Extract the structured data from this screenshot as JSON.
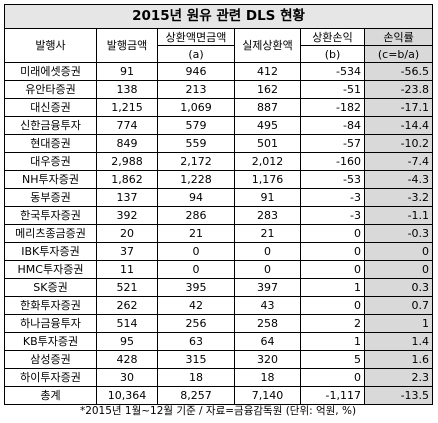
{
  "title": "2015년 원유 관련 DLS 현황",
  "headers": {
    "company": "발행사",
    "issue_amount": "발행금액",
    "redemption_face_line1": "상환액면금액",
    "redemption_face_line2": "(a)",
    "actual_redemption": "실제상환액",
    "pnl_line1": "상환손익",
    "pnl_line2": "(b)",
    "loss_rate_line1": "손익률",
    "loss_rate_line2": "(c=b/a)"
  },
  "rows": [
    {
      "company": "미래에셋증권",
      "issue": "91",
      "face": "946",
      "actual": "412",
      "pnl": "-534",
      "rate": "-56.5"
    },
    {
      "company": "유안타증권",
      "issue": "138",
      "face": "213",
      "actual": "162",
      "pnl": "-51",
      "rate": "-23.8"
    },
    {
      "company": "대신증권",
      "issue": "1,215",
      "face": "1,069",
      "actual": "887",
      "pnl": "-182",
      "rate": "-17.1"
    },
    {
      "company": "신한금융투자",
      "issue": "774",
      "face": "579",
      "actual": "495",
      "pnl": "-84",
      "rate": "-14.4"
    },
    {
      "company": "현대증권",
      "issue": "849",
      "face": "559",
      "actual": "501",
      "pnl": "-57",
      "rate": "-10.2"
    },
    {
      "company": "대우증권",
      "issue": "2,988",
      "face": "2,172",
      "actual": "2,012",
      "pnl": "-160",
      "rate": "-7.4"
    },
    {
      "company": "NH투자증권",
      "issue": "1,862",
      "face": "1,228",
      "actual": "1,176",
      "pnl": "-53",
      "rate": "-4.3"
    },
    {
      "company": "동부증권",
      "issue": "137",
      "face": "94",
      "actual": "91",
      "pnl": "-3",
      "rate": "-3.2"
    },
    {
      "company": "한국투자증권",
      "issue": "392",
      "face": "286",
      "actual": "283",
      "pnl": "-3",
      "rate": "-1.1"
    },
    {
      "company": "메리츠종금증권",
      "issue": "20",
      "face": "21",
      "actual": "21",
      "pnl": "0",
      "rate": "-0.3"
    },
    {
      "company": "IBK투자증권",
      "issue": "37",
      "face": "0",
      "actual": "0",
      "pnl": "0",
      "rate": "0"
    },
    {
      "company": "HMC투자증권",
      "issue": "11",
      "face": "0",
      "actual": "0",
      "pnl": "0",
      "rate": "0"
    },
    {
      "company": "SK증권",
      "issue": "521",
      "face": "395",
      "actual": "397",
      "pnl": "1",
      "rate": "0.3"
    },
    {
      "company": "한화투자증권",
      "issue": "262",
      "face": "42",
      "actual": "43",
      "pnl": "0",
      "rate": "0.7"
    },
    {
      "company": "하나금융투자",
      "issue": "514",
      "face": "256",
      "actual": "258",
      "pnl": "2",
      "rate": "1"
    },
    {
      "company": "KB투자증권",
      "issue": "95",
      "face": "63",
      "actual": "64",
      "pnl": "1",
      "rate": "1.4"
    },
    {
      "company": "삼성증권",
      "issue": "428",
      "face": "315",
      "actual": "320",
      "pnl": "5",
      "rate": "1.6"
    },
    {
      "company": "하이투자증권",
      "issue": "30",
      "face": "18",
      "actual": "18",
      "pnl": "0",
      "rate": "2.3"
    }
  ],
  "total": {
    "company": "총계",
    "issue": "10,364",
    "face": "8,257",
    "actual": "7,140",
    "pnl": "-1,117",
    "rate": "-13.5"
  },
  "footnote": "*2015년 1월~12월 기준 / 자료=금융감독원 (단위: 억원, %)"
}
